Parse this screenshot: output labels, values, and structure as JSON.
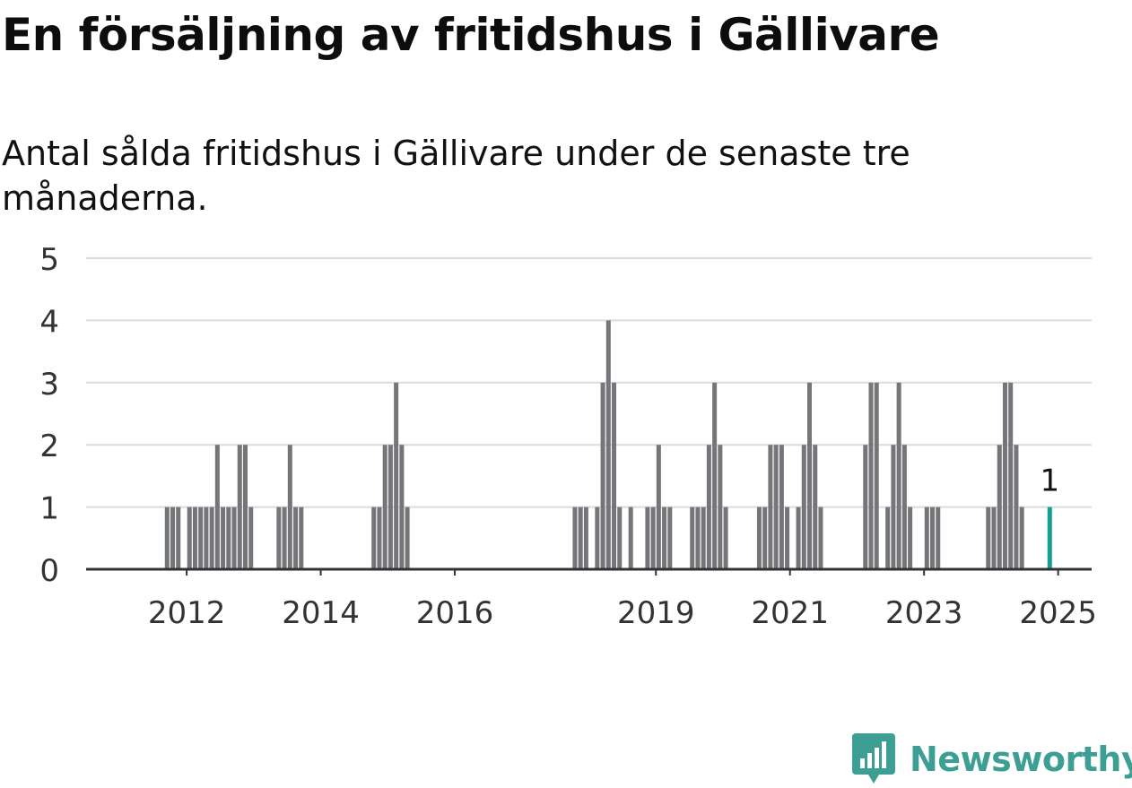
{
  "title": "En försäljning av fritidshus i Gällivare",
  "subtitle": "Antal sålda fritidshus i Gällivare under de senaste tre månaderna.",
  "brand": {
    "name": "Newsworthy",
    "icon": "newsworthy-logo-icon",
    "color": "#3d9f93"
  },
  "colors": {
    "bar": "#76767a",
    "highlight": "#14a091",
    "grid": "#dcdcdc",
    "axis": "#333333"
  },
  "chart_data": {
    "type": "bar",
    "title": "En försäljning av fritidshus i Gällivare",
    "subtitle": "Antal sålda fritidshus i Gällivare under de senaste tre månaderna.",
    "xlabel": "",
    "ylabel": "",
    "ylim": [
      0,
      5
    ],
    "yticks": [
      0,
      1,
      2,
      3,
      4,
      5
    ],
    "xlim": [
      "2011-01",
      "2025-12"
    ],
    "xticks": [
      "2012",
      "2014",
      "2016",
      "2019",
      "2021",
      "2023",
      "2025"
    ],
    "grid": true,
    "highlight": {
      "date": "2025-05",
      "value": 1,
      "label": "1"
    },
    "series": [
      {
        "dates": [
          "2012-03",
          "2012-04",
          "2012-05",
          "2012-07",
          "2012-08",
          "2012-09",
          "2012-10",
          "2012-11",
          "2012-12",
          "2013-01",
          "2013-02",
          "2013-03",
          "2013-04",
          "2013-05",
          "2013-06",
          "2013-07",
          "2013-08",
          "2013-11",
          "2013-12",
          "2014-01",
          "2014-02",
          "2014-03",
          "2015-04",
          "2015-05",
          "2015-06",
          "2015-07",
          "2015-08",
          "2015-09",
          "2015-10",
          "2018-04",
          "2018-05",
          "2018-06",
          "2018-08",
          "2018-09",
          "2018-10",
          "2018-11",
          "2018-12",
          "2019-02",
          "2019-05",
          "2019-06",
          "2019-07",
          "2019-08",
          "2019-09",
          "2020-01",
          "2020-02",
          "2020-03",
          "2020-04",
          "2020-05",
          "2020-06",
          "2020-07",
          "2021-01",
          "2021-02",
          "2021-03",
          "2021-04",
          "2021-05",
          "2021-06",
          "2021-08",
          "2021-09",
          "2021-10",
          "2021-11",
          "2021-12",
          "2022-08",
          "2022-09",
          "2022-10",
          "2022-12",
          "2023-01",
          "2023-02",
          "2023-03",
          "2023-04",
          "2023-07",
          "2023-08",
          "2023-09",
          "2024-06",
          "2024-07",
          "2024-08",
          "2024-09",
          "2024-10",
          "2024-11",
          "2024-12",
          "2025-05"
        ],
        "values": [
          1,
          1,
          1,
          1,
          1,
          1,
          1,
          1,
          2,
          1,
          1,
          1,
          2,
          2,
          1,
          0,
          0,
          1,
          1,
          2,
          1,
          1,
          1,
          1,
          2,
          2,
          3,
          2,
          1,
          1,
          1,
          1,
          1,
          3,
          4,
          3,
          1,
          1,
          1,
          1,
          2,
          1,
          1,
          1,
          1,
          1,
          2,
          3,
          2,
          1,
          1,
          1,
          2,
          2,
          2,
          1,
          1,
          2,
          3,
          2,
          1,
          2,
          3,
          3,
          1,
          2,
          3,
          2,
          1,
          1,
          1,
          1,
          1,
          1,
          2,
          3,
          3,
          2,
          1,
          1
        ]
      }
    ]
  }
}
